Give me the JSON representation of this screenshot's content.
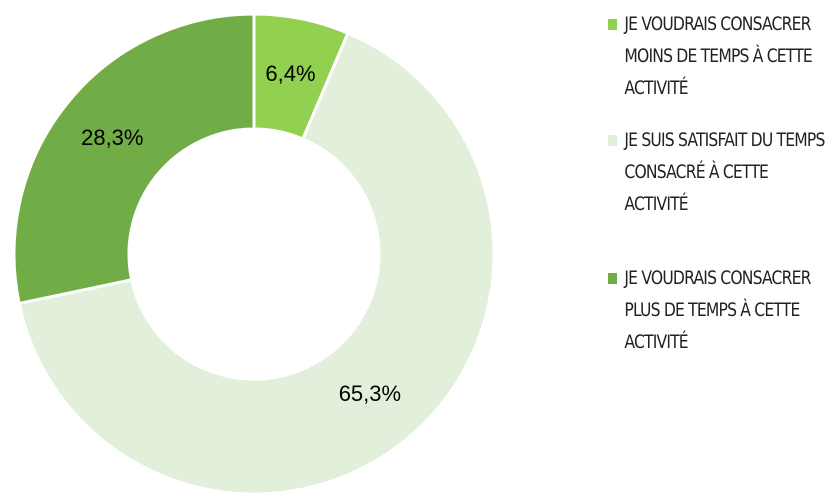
{
  "chart_data": {
    "type": "donut",
    "categories": [
      "JE VOUDRAIS CONSACRER MOINS DE TEMPS À CETTE ACTIVITÉ",
      "JE SUIS SATISFAIT DU TEMPS CONSACRÉ À CETTE ACTIVITÉ",
      "JE VOUDRAIS CONSACRER PLUS DE TEMPS À CETTE ACTIVITÉ"
    ],
    "values": [
      6.4,
      65.3,
      28.3
    ],
    "value_labels": [
      "6,4%",
      "65,3%",
      "28,3%"
    ],
    "colors": [
      "#92d050",
      "#e2efda",
      "#70ad47"
    ],
    "legend": "right"
  }
}
